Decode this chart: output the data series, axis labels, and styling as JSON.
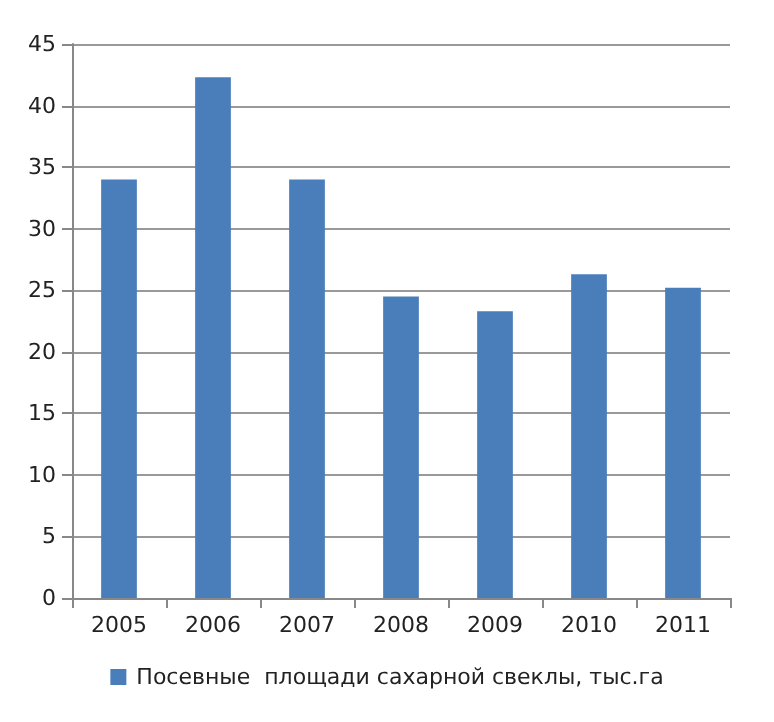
{
  "chart_data": {
    "type": "bar",
    "categories": [
      "2005",
      "2006",
      "2007",
      "2008",
      "2009",
      "2010",
      "2011"
    ],
    "series": [
      {
        "name": "Посевные  площади сахарной свеклы, тыс.га",
        "color": "#4a7ebb",
        "values": [
          34,
          42.3,
          34,
          24.5,
          23.3,
          26.3,
          25.2
        ]
      }
    ],
    "ylim": [
      0,
      45
    ],
    "yticks": [
      0,
      5,
      10,
      15,
      20,
      25,
      30,
      35,
      40,
      45
    ],
    "grid": "y",
    "legend": "bottom"
  }
}
